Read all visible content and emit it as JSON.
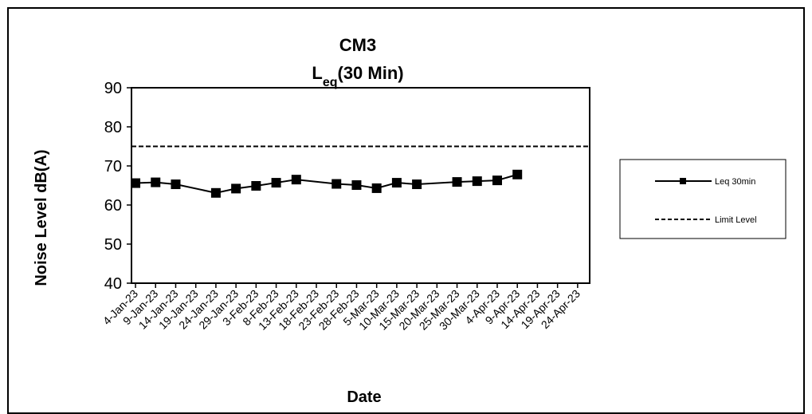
{
  "chart_data": {
    "type": "line",
    "title": "CM3",
    "subtitle_main": "L",
    "subtitle_sub": "eq",
    "subtitle_rest": "(30 Min)",
    "xlabel": "Date",
    "ylabel": "Noise Level dB(A)",
    "ylim": [
      40,
      90
    ],
    "yticks": [
      40,
      50,
      60,
      70,
      80,
      90
    ],
    "x_tick_labels": [
      "4-Jan-23",
      "9-Jan-23",
      "14-Jan-23",
      "19-Jan-23",
      "24-Jan-23",
      "29-Jan-23",
      "3-Feb-23",
      "8-Feb-23",
      "13-Feb-23",
      "18-Feb-23",
      "23-Feb-23",
      "28-Feb-23",
      "5-Mar-23",
      "10-Mar-23",
      "15-Mar-23",
      "20-Mar-23",
      "25-Mar-23",
      "30-Mar-23",
      "4-Apr-23",
      "9-Apr-23",
      "14-Apr-23",
      "19-Apr-23",
      "24-Apr-23"
    ],
    "xlim": [
      "2023-01-03",
      "2023-04-27"
    ],
    "grid": false,
    "legend_position": "right",
    "series": [
      {
        "name": "Leq 30min",
        "style": "solid-square-markers",
        "color": "#000000",
        "points": [
          {
            "x": "2023-01-04",
            "y": 65.6
          },
          {
            "x": "2023-01-09",
            "y": 65.8
          },
          {
            "x": "2023-01-14",
            "y": 65.3
          },
          {
            "x": "2023-01-24",
            "y": 63.1
          },
          {
            "x": "2023-01-29",
            "y": 64.2
          },
          {
            "x": "2023-02-03",
            "y": 64.9
          },
          {
            "x": "2023-02-08",
            "y": 65.7
          },
          {
            "x": "2023-02-13",
            "y": 66.5
          },
          {
            "x": "2023-02-23",
            "y": 65.4
          },
          {
            "x": "2023-02-28",
            "y": 65.1
          },
          {
            "x": "2023-03-05",
            "y": 64.3
          },
          {
            "x": "2023-03-10",
            "y": 65.7
          },
          {
            "x": "2023-03-15",
            "y": 65.3
          },
          {
            "x": "2023-03-25",
            "y": 65.9
          },
          {
            "x": "2023-03-30",
            "y": 66.1
          },
          {
            "x": "2023-04-04",
            "y": 66.3
          },
          {
            "x": "2023-04-09",
            "y": 67.8
          }
        ]
      },
      {
        "name": "Limit Level",
        "style": "dashed",
        "color": "#000000",
        "constant": 75
      }
    ]
  }
}
